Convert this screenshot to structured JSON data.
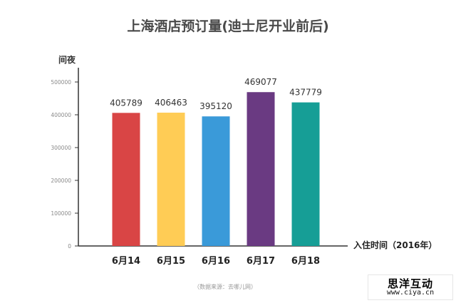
{
  "chart_data": {
    "type": "bar",
    "title": "上海酒店预订量(迪士尼开业前后)",
    "ylabel": "间夜",
    "xlabel": "入住时间（2016年）",
    "categories": [
      "6月14",
      "6月15",
      "6月16",
      "6月17",
      "6月18"
    ],
    "values": [
      405789,
      406463,
      395120,
      469077,
      437779
    ],
    "data_labels": [
      "405789",
      "406463",
      "395120",
      "469077",
      "437779"
    ],
    "colors": [
      "#d94545",
      "#ffcc55",
      "#3a9ad9",
      "#6a3a82",
      "#169e96"
    ],
    "ylim": [
      0,
      500000
    ],
    "yticks": [
      0,
      100000,
      200000,
      300000,
      400000,
      500000
    ],
    "ytick_labels": [
      "0",
      "100000",
      "200000",
      "300000",
      "400000",
      "500000"
    ],
    "grid": false,
    "legend": "none"
  },
  "source_note": "（数据来源：去哪儿网）",
  "watermark": {
    "title": "思洋互动",
    "url": "www.ciya.cn"
  }
}
